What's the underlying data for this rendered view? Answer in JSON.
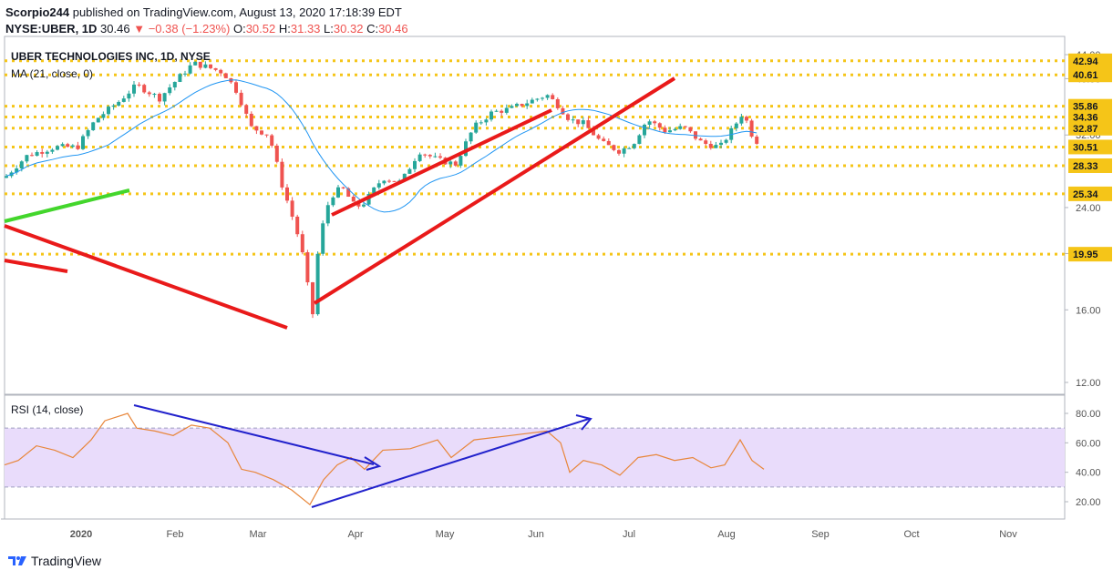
{
  "header": {
    "publisher": "Scorpio244",
    "published_text": "published on TradingView.com, August 13, 2020 17:18:39 EDT",
    "symbol": "NYSE:UBER, 1D",
    "last": "30.46",
    "change": "−0.38 (−1.23%)",
    "o_label": "O:",
    "o": "30.52",
    "h_label": "H:",
    "h": "31.33",
    "l_label": "L:",
    "l": "30.32",
    "c_label": "C:",
    "c": "30.46"
  },
  "branding": {
    "logo_text": "TradingView"
  },
  "chart_data": {
    "type": "candlestick",
    "title": "UBER TECHNOLOGIES INC, 1D, NYSE",
    "indicator": "MA (21, close, 0)",
    "x_months": [
      "2020",
      "Feb",
      "Mar",
      "Apr",
      "May",
      "Jun",
      "Jul",
      "Aug",
      "Sep",
      "Oct",
      "Nov"
    ],
    "price_axis_ticks": [
      12.0,
      16.0,
      20.0,
      24.0,
      32.0,
      40.0,
      44.0
    ],
    "horizontal_levels": [
      42.94,
      40.61,
      35.86,
      34.36,
      32.87,
      30.51,
      28.33,
      25.34,
      19.95
    ],
    "rsi": {
      "label": "RSI (14, close)",
      "ticks": [
        20.0,
        40.0,
        60.0,
        80.0
      ],
      "band": [
        30,
        70
      ]
    },
    "colors": {
      "up": "#26a69a",
      "down": "#ef5350",
      "ma": "#2196f3",
      "level": "#f5c518",
      "trend_red": "#e91a1a",
      "trend_green": "#43d62c",
      "rsi_line": "#e8863a",
      "rsi_band": "#e9dcfb",
      "rsi_arrows": "#2222cc"
    }
  }
}
